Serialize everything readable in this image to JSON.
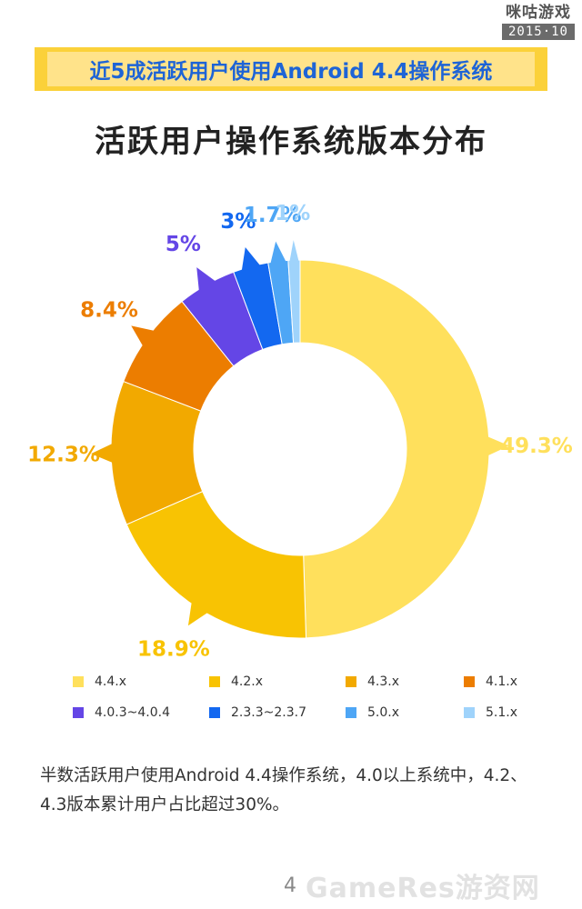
{
  "logo": {
    "mark": "咪咕游戏",
    "date": "2015·10"
  },
  "header": {
    "banner": "近5成活跃用户使用Android 4.4操作系统",
    "title": "活跃用户操作系统版本分布"
  },
  "chart_data": {
    "type": "pie",
    "style": "donut",
    "categories": [
      "4.4.x",
      "4.2.x",
      "4.3.x",
      "4.1.x",
      "4.0.3~4.0.4",
      "2.3.3~2.3.7",
      "5.0.x",
      "5.1.x"
    ],
    "values": [
      49.3,
      18.9,
      12.3,
      8.4,
      5,
      3,
      1.7,
      1
    ],
    "labels": [
      "49.3%",
      "18.9%",
      "12.3%",
      "8.4%",
      "5%",
      "3%",
      "1.7%",
      "1%"
    ],
    "colors": [
      "#ffe05c",
      "#f8c303",
      "#f2a900",
      "#ec7d00",
      "#6446e6",
      "#1368f0",
      "#4ea6f5",
      "#9fd3fb"
    ],
    "legend_position": "bottom"
  },
  "description": "半数活跃用户使用Android   4.4操作系统，4.0以上系统中，4.2、4.3版本累计用户占比超过30%。",
  "footer": {
    "page": "4",
    "watermark": "GameRes游资网"
  }
}
